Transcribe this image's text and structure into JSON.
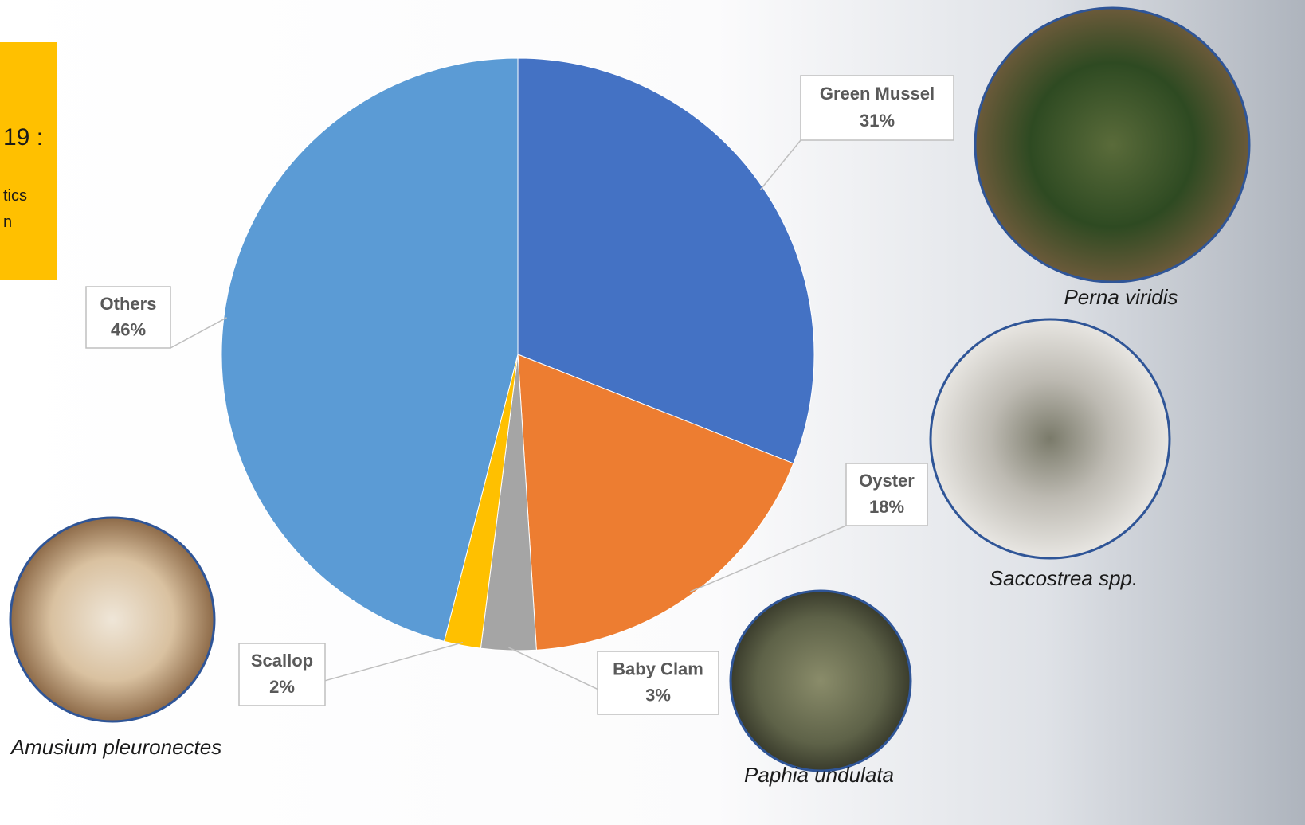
{
  "chart_data": {
    "type": "pie",
    "categories": [
      "Green Mussel",
      "Oyster",
      "Baby Clam",
      "Scallop",
      "Others"
    ],
    "values": [
      31,
      18,
      3,
      2,
      46
    ],
    "value_labels": [
      "31%",
      "18%",
      "3%",
      "2%",
      "46%"
    ],
    "colors": [
      "#4472c4",
      "#ed7d31",
      "#a5a5a5",
      "#ffc000",
      "#5b9bd5"
    ]
  },
  "sidebar": {
    "lines": [
      "19 :",
      "tics",
      "n"
    ]
  },
  "images": [
    {
      "caption": "Perna viridis"
    },
    {
      "caption": "Saccostrea spp."
    },
    {
      "caption": "Paphia undulata"
    },
    {
      "caption": "Amusium pleuronectes"
    }
  ]
}
